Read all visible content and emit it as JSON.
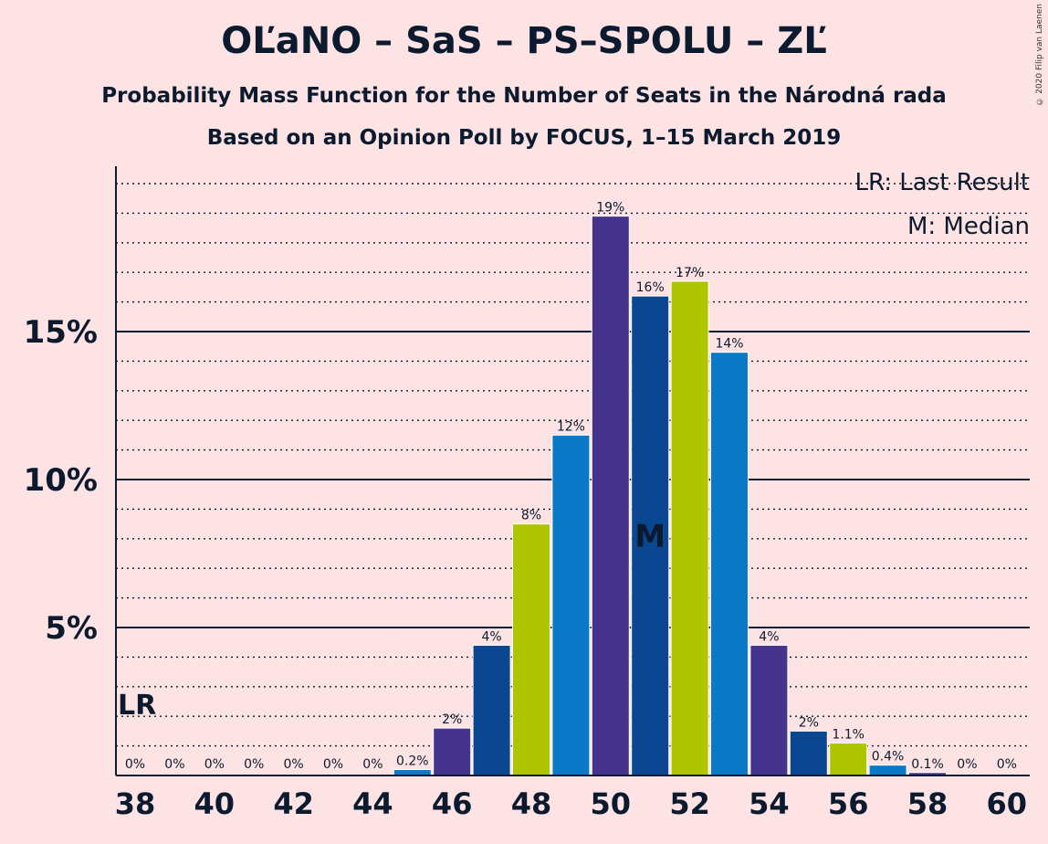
{
  "title": "OĽaNO – SaS – PS–SPOLU – ZĽ",
  "subtitle_1": "Probability Mass Function for the Number of Seats in the Národná rada",
  "subtitle_2": "Based on an Opinion Poll by FOCUS, 1–15 March 2019",
  "copyright": "© 2020 Filip van Laenen",
  "legend": {
    "last_result": "LR: Last Result",
    "median": "M: Median"
  },
  "colors": {
    "background": "#fde3e3",
    "purple": "#45338c",
    "navy": "#0a4790",
    "lime": "#afc500",
    "blue": "#0a79c8"
  },
  "chart_data": {
    "type": "bar",
    "title": "OĽaNO – SaS – PS–SPOLU – ZĽ",
    "xlabel": "",
    "ylabel": "",
    "x": [
      38,
      39,
      40,
      41,
      42,
      43,
      44,
      45,
      46,
      47,
      48,
      49,
      50,
      51,
      52,
      53,
      54,
      55,
      56,
      57,
      58,
      59,
      60
    ],
    "values": [
      0,
      0,
      0,
      0,
      0,
      0,
      0,
      0.2,
      1.6,
      4.4,
      8.5,
      11.5,
      18.9,
      16.2,
      16.7,
      14.3,
      4.4,
      1.5,
      1.1,
      0.35,
      0.1,
      0,
      0
    ],
    "data_labels": [
      "0%",
      "0%",
      "0%",
      "0%",
      "0%",
      "0%",
      "0%",
      "0.2%",
      "2%",
      "4%",
      "8%",
      "12%",
      "19%",
      "16%",
      "17%",
      "14%",
      "4%",
      "2%",
      "1.1%",
      "0.4%",
      "0.1%",
      "0%",
      "0%"
    ],
    "bar_colors": [
      "#45338c",
      "#0a4790",
      "#afc500",
      "#0a79c8",
      "#45338c",
      "#0a4790",
      "#afc500",
      "#0a79c8",
      "#45338c",
      "#0a4790",
      "#afc500",
      "#0a79c8",
      "#45338c",
      "#0a4790",
      "#afc500",
      "#0a79c8",
      "#45338c",
      "#0a4790",
      "#afc500",
      "#0a79c8",
      "#45338c",
      "#0a4790",
      "#afc500"
    ],
    "x_tick_labels": [
      "38",
      "40",
      "42",
      "44",
      "46",
      "48",
      "50",
      "52",
      "54",
      "56",
      "58",
      "60"
    ],
    "y_tick_labels": [
      "5%",
      "10%",
      "15%"
    ],
    "y_ticks": [
      5,
      10,
      15
    ],
    "ylim": [
      0,
      20.5
    ],
    "grid": "dotted lines every 1%, solid lines at 5%, 10%, 15%",
    "last_result": {
      "seats": 38,
      "label": "LR"
    },
    "median": {
      "seats": 51,
      "label": "M"
    },
    "legend_position": "top-right"
  }
}
